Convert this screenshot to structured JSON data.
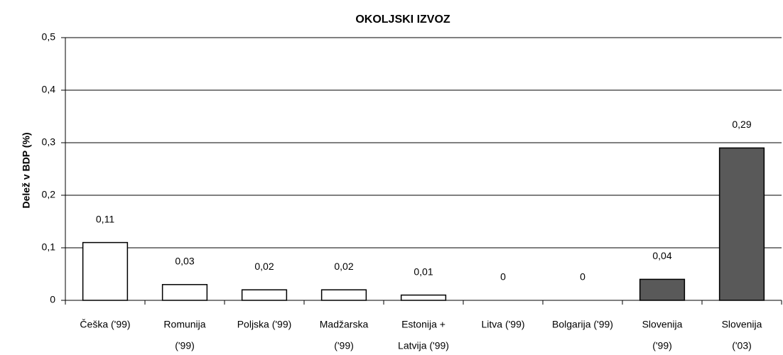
{
  "chart_data": {
    "type": "bar",
    "title": "OKOLJSKI IZVOZ",
    "y_label": "Delež v BDP (%)",
    "categories": [
      [
        "Češka ('99)"
      ],
      [
        "Romunija",
        "('99)"
      ],
      [
        "Poljska ('99)"
      ],
      [
        "Madžarska",
        "('99)"
      ],
      [
        "Estonija +",
        "Latvija ('99)"
      ],
      [
        "Litva ('99)"
      ],
      [
        "Bolgarija ('99)"
      ],
      [
        "Slovenija",
        "('99)"
      ],
      [
        "Slovenija",
        "('03)"
      ]
    ],
    "values": [
      0.11,
      0.03,
      0.02,
      0.02,
      0.01,
      0,
      0,
      0.04,
      0.29
    ],
    "value_labels": [
      "0,11",
      "0,03",
      "0,02",
      "0,02",
      "0,01",
      "0",
      "0",
      "0,04",
      "0,29"
    ],
    "colors": [
      "#ffffff",
      "#ffffff",
      "#ffffff",
      "#ffffff",
      "#ffffff",
      "#ffffff",
      "#ffffff",
      "#595959",
      "#595959"
    ],
    "ylim": [
      0,
      0.5
    ],
    "yticks": [
      0,
      {
        "value": 0.1,
        "label": "0,1"
      },
      {
        "value": 0.2,
        "label": "0,2"
      },
      {
        "value": 0.3,
        "label": "0,3"
      },
      {
        "value": 0.4,
        "label": "0,4"
      },
      {
        "value": 0.5,
        "label": "0,5"
      }
    ],
    "grid": true
  }
}
